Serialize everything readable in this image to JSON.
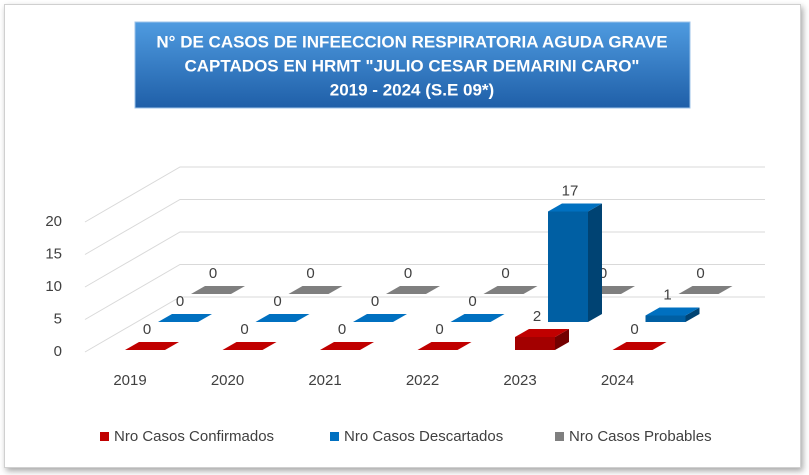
{
  "chart_data": {
    "type": "bar3d",
    "title": [
      "N° DE CASOS DE INFEECCION RESPIRATORIA AGUDA GRAVE",
      "CAPTADOS EN HRMT \"JULIO CESAR DEMARINI CARO\"",
      "2019 - 2024  (S.E 09*)"
    ],
    "categories": [
      "2019",
      "2020",
      "2021",
      "2022",
      "2023",
      "2024"
    ],
    "series": [
      {
        "name": "Nro Casos Confirmados",
        "color": "#c00000",
        "values": [
          0,
          0,
          0,
          0,
          2,
          0
        ]
      },
      {
        "name": "Nro Casos Descartados",
        "color": "#0070c0",
        "values": [
          0,
          0,
          0,
          0,
          17,
          1
        ]
      },
      {
        "name": "Nro Casos Probables",
        "color": "#7f7f7f",
        "values": [
          0,
          0,
          0,
          0,
          0,
          0
        ]
      }
    ],
    "ylim": [
      0,
      20
    ],
    "yticks": [
      0,
      5,
      10,
      15,
      20
    ],
    "grid": true,
    "legend": "bottom"
  }
}
